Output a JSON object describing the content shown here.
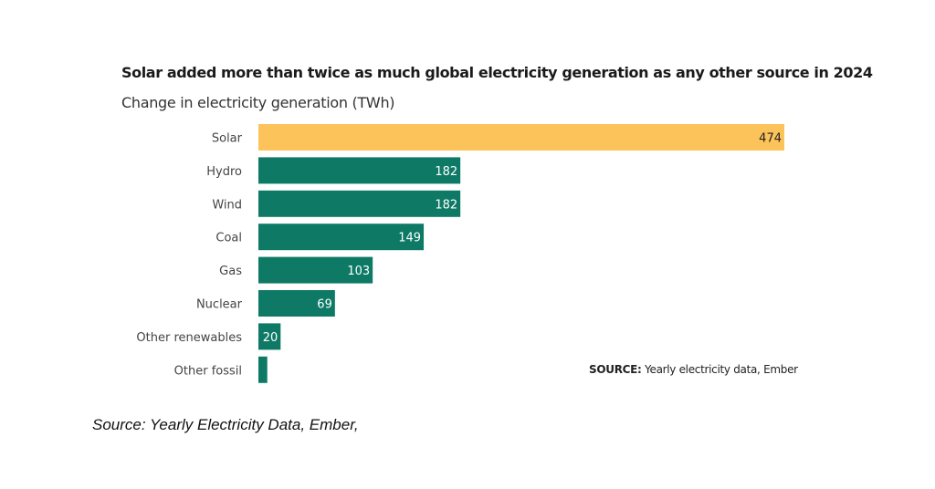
{
  "chart_data": {
    "type": "bar",
    "orientation": "horizontal",
    "title": "Solar added more than twice as much global electricity generation as any other source in 2024",
    "subtitle": "Change in electricity generation (TWh)",
    "categories": [
      "Solar",
      "Hydro",
      "Wind",
      "Coal",
      "Gas",
      "Nuclear",
      "Other renewables",
      "Other fossil"
    ],
    "values": [
      474,
      182,
      182,
      149,
      103,
      69,
      20,
      8
    ],
    "data_labels": [
      "474",
      "182",
      "182",
      "149",
      "103",
      "69",
      "20",
      ""
    ],
    "colors": [
      "#fcc35a",
      "#0e7a66",
      "#0e7a66",
      "#0e7a66",
      "#0e7a66",
      "#0e7a66",
      "#0e7a66",
      "#0e7a66"
    ],
    "xlim": [
      0,
      474
    ],
    "grid": false,
    "legend": "none"
  },
  "source_inner": {
    "label": "SOURCE:",
    "text": "Yearly electricity data, Ember"
  },
  "caption": "Source: Yearly Electricity Data, Ember,"
}
